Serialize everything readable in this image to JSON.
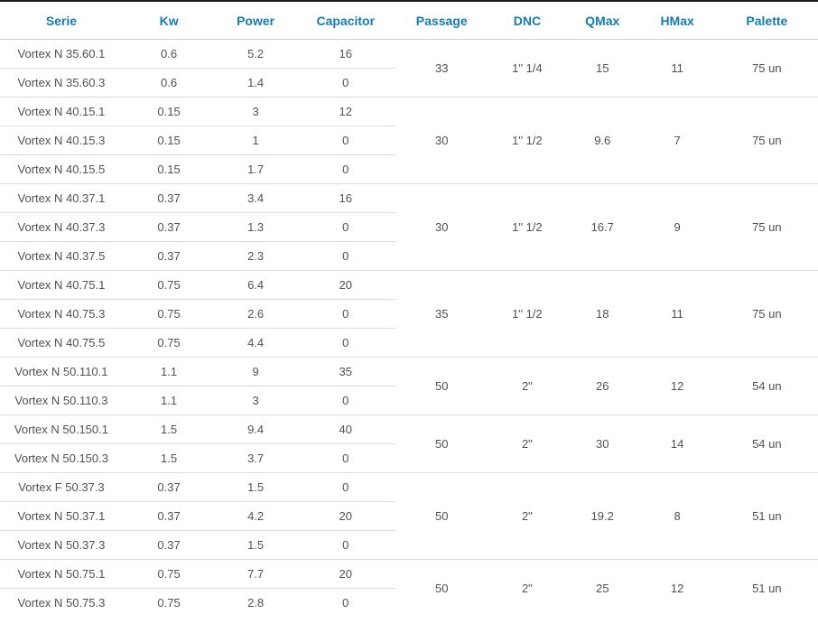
{
  "colors": {
    "accent_header_text": "#177bad",
    "body_text": "#515151",
    "row_border": "#dcdcdc",
    "header_border": "#c5ced3",
    "top_border": "#1c1c1c"
  },
  "table": {
    "headers": [
      "Serie",
      "Kw",
      "Power",
      "Capacitor",
      "Passage",
      "DNC",
      "QMax",
      "HMax",
      "Palette"
    ],
    "groups": [
      {
        "rows": [
          {
            "serie": "Vortex N 35.60.1",
            "kw": "0.6",
            "power": "5.2",
            "capacitor": "16"
          },
          {
            "serie": "Vortex N 35.60.3",
            "kw": "0.6",
            "power": "1.4",
            "capacitor": "0"
          }
        ],
        "passage": "33",
        "dnc": "1\" 1/4",
        "qmax": "15",
        "hmax": "11",
        "palette": "75 un"
      },
      {
        "rows": [
          {
            "serie": "Vortex N 40.15.1",
            "kw": "0.15",
            "power": "3",
            "capacitor": "12"
          },
          {
            "serie": "Vortex N 40.15.3",
            "kw": "0.15",
            "power": "1",
            "capacitor": "0"
          },
          {
            "serie": "Vortex N 40.15.5",
            "kw": "0.15",
            "power": "1.7",
            "capacitor": "0"
          }
        ],
        "passage": "30",
        "dnc": "1\" 1/2",
        "qmax": "9.6",
        "hmax": "7",
        "palette": "75 un"
      },
      {
        "rows": [
          {
            "serie": "Vortex N 40.37.1",
            "kw": "0.37",
            "power": "3.4",
            "capacitor": "16"
          },
          {
            "serie": "Vortex N 40.37.3",
            "kw": "0.37",
            "power": "1.3",
            "capacitor": "0"
          },
          {
            "serie": "Vortex N 40.37.5",
            "kw": "0.37",
            "power": "2.3",
            "capacitor": "0"
          }
        ],
        "passage": "30",
        "dnc": "1\" 1/2",
        "qmax": "16.7",
        "hmax": "9",
        "palette": "75 un"
      },
      {
        "rows": [
          {
            "serie": "Vortex N 40.75.1",
            "kw": "0.75",
            "power": "6.4",
            "capacitor": "20"
          },
          {
            "serie": "Vortex N 40.75.3",
            "kw": "0.75",
            "power": "2.6",
            "capacitor": "0"
          },
          {
            "serie": "Vortex N 40.75.5",
            "kw": "0.75",
            "power": "4.4",
            "capacitor": "0"
          }
        ],
        "passage": "35",
        "dnc": "1\" 1/2",
        "qmax": "18",
        "hmax": "11",
        "palette": "75 un"
      },
      {
        "rows": [
          {
            "serie": "Vortex N 50.110.1",
            "kw": "1.1",
            "power": "9",
            "capacitor": "35"
          },
          {
            "serie": "Vortex N 50.110.3",
            "kw": "1.1",
            "power": "3",
            "capacitor": "0"
          }
        ],
        "passage": "50",
        "dnc": "2\"",
        "qmax": "26",
        "hmax": "12",
        "palette": "54 un"
      },
      {
        "rows": [
          {
            "serie": "Vortex N 50.150.1",
            "kw": "1.5",
            "power": "9.4",
            "capacitor": "40"
          },
          {
            "serie": "Vortex N 50.150.3",
            "kw": "1.5",
            "power": "3.7",
            "capacitor": "0"
          }
        ],
        "passage": "50",
        "dnc": "2\"",
        "qmax": "30",
        "hmax": "14",
        "palette": "54 un"
      },
      {
        "rows": [
          {
            "serie": "Vortex F 50.37.3",
            "kw": "0.37",
            "power": "1.5",
            "capacitor": "0"
          },
          {
            "serie": "Vortex N 50.37.1",
            "kw": "0.37",
            "power": "4.2",
            "capacitor": "20"
          },
          {
            "serie": "Vortex N 50.37.3",
            "kw": "0.37",
            "power": "1.5",
            "capacitor": "0"
          }
        ],
        "passage": "50",
        "dnc": "2\"",
        "qmax": "19.2",
        "hmax": "8",
        "palette": "51 un"
      },
      {
        "rows": [
          {
            "serie": "Vortex N 50.75.1",
            "kw": "0.75",
            "power": "7.7",
            "capacitor": "20"
          },
          {
            "serie": "Vortex N 50.75.3",
            "kw": "0.75",
            "power": "2.8",
            "capacitor": "0"
          }
        ],
        "passage": "50",
        "dnc": "2\"",
        "qmax": "25",
        "hmax": "12",
        "palette": "51 un"
      }
    ]
  }
}
